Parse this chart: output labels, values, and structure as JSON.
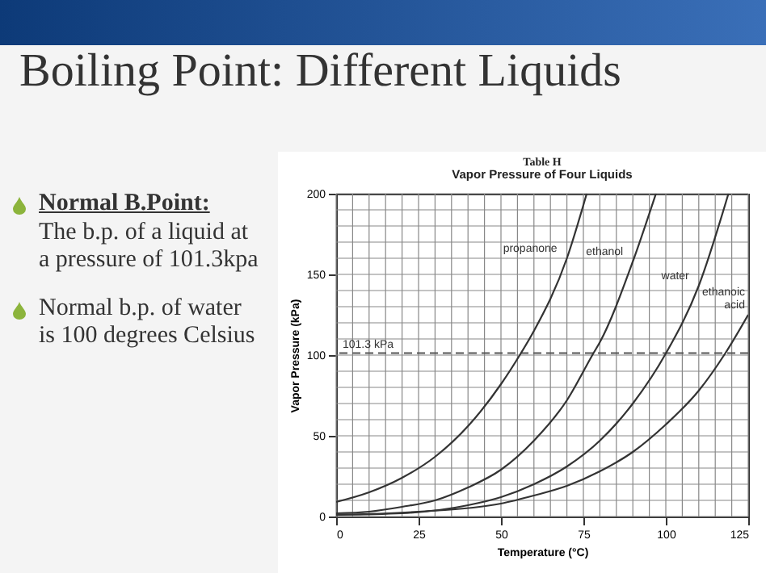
{
  "chart_data": {
    "type": "line",
    "title": "Table H",
    "subtitle": "Vapor Pressure of Four Liquids",
    "xlabel": "Temperature (°C)",
    "ylabel": "Vapor Pressure (kPa)",
    "xlim": [
      0,
      125
    ],
    "ylim": [
      0,
      200
    ],
    "xticks": [
      0,
      25,
      50,
      75,
      100,
      125
    ],
    "yticks": [
      0,
      50,
      100,
      150,
      200
    ],
    "grid": true,
    "legend": false,
    "marker": "none",
    "line_style": "solid",
    "ref_lines": [
      {
        "axis": "y",
        "value": 101.3,
        "label": "101.3 kPa",
        "line_style": "dashed"
      }
    ],
    "annotations": [
      "Boiling Point: Different Liquids",
      "Normal B.Point:",
      "The b.p. of a liquid at a pressure of 101.3kpa",
      "Normal b.p. of water is 100 degrees Celsius"
    ],
    "series": [
      {
        "name": "propanone",
        "color": "#333333",
        "x": [
          0,
          10,
          20,
          30,
          40,
          50,
          56,
          60,
          70,
          76
        ],
        "values": [
          9,
          15,
          24,
          37,
          56,
          82,
          101,
          115,
          160,
          200
        ]
      },
      {
        "name": "ethanol",
        "color": "#333333",
        "x": [
          0,
          10,
          20,
          30,
          40,
          50,
          60,
          70,
          78,
          80,
          90,
          97
        ],
        "values": [
          2,
          3,
          6,
          10,
          18,
          29,
          47,
          72,
          101,
          108,
          158,
          200
        ]
      },
      {
        "name": "water",
        "color": "#333333",
        "x": [
          0,
          20,
          40,
          50,
          60,
          70,
          80,
          90,
          100,
          110,
          119
        ],
        "values": [
          1,
          2,
          7,
          12,
          20,
          31,
          47,
          70,
          101,
          143,
          200
        ]
      },
      {
        "name": "ethanoic acid",
        "color": "#333333",
        "x": [
          0,
          25,
          50,
          60,
          70,
          80,
          90,
          100,
          110,
          118,
          125
        ],
        "values": [
          1,
          3,
          8,
          13,
          19,
          28,
          40,
          57,
          78,
          101,
          125
        ]
      }
    ]
  }
}
